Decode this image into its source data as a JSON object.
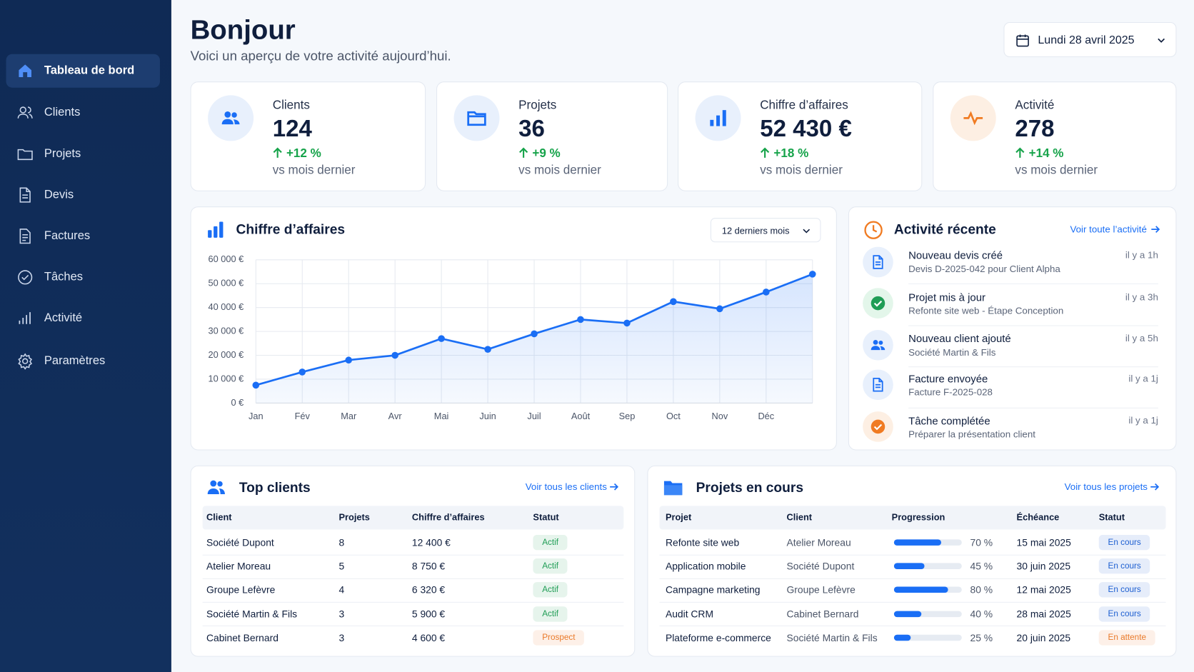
{
  "sidebar": {
    "nav": [
      "Tableau de bord",
      "Clients",
      "Projets",
      "Devis",
      "Factures",
      "Tâches",
      "Activité",
      "Paramètres"
    ]
  },
  "header": {
    "title": "Bonjour",
    "subtitle": "Voici un aperçu de votre activité aujourd’hui.",
    "date": "Lundi 28 avril 2025"
  },
  "stats": [
    {
      "label": "Clients",
      "value": "124",
      "change": "+12 %",
      "note": "vs mois dernier"
    },
    {
      "label": "Projets",
      "value": "36",
      "change": "+9 %",
      "note": "vs mois dernier"
    },
    {
      "label": "Chiffre d’affaires",
      "value": "52 430 €",
      "change": "+18 %",
      "note": "vs mois dernier"
    },
    {
      "label": "Activité",
      "value": "278",
      "change": "+14 %",
      "note": "vs mois dernier"
    }
  ],
  "chart_data": {
    "type": "line",
    "title": "Chiffre d’affaires",
    "period": "12 derniers mois",
    "categories": [
      "Jan",
      "Fév",
      "Mar",
      "Avr",
      "Mai",
      "Juin",
      "Juil",
      "Août",
      "Sep",
      "Oct",
      "Nov",
      "Déc",
      null
    ],
    "values": [
      7500,
      13000,
      18000,
      20000,
      27000,
      22500,
      29000,
      35000,
      33500,
      42500,
      39500,
      46500,
      54000
    ],
    "color": "#1a6ef5",
    "area": true,
    "ylim": [
      0,
      60000
    ],
    "yticks": [
      {
        "value": 0,
        "label": "0 €"
      },
      {
        "value": 10000,
        "label": "10 000 €"
      },
      {
        "value": 20000,
        "label": "20 000 €"
      },
      {
        "value": 30000,
        "label": "30 000 €"
      },
      {
        "value": 40000,
        "label": "40 000 €"
      },
      {
        "value": 50000,
        "label": "50 000 €"
      },
      {
        "value": 60000,
        "label": "60 000 €"
      }
    ],
    "grid": true
  },
  "activity": {
    "title": "Activité récente",
    "link": "Voir toute l’activité",
    "items": [
      {
        "title": "Nouveau devis créé",
        "detail": "Devis D-2025-042 pour Client Alpha",
        "time": "il y a 1h"
      },
      {
        "title": "Projet mis à jour",
        "detail": "Refonte site web - Étape Conception",
        "time": "il y a 3h"
      },
      {
        "title": "Nouveau client ajouté",
        "detail": "Société Martin & Fils",
        "time": "il y a 5h"
      },
      {
        "title": "Facture envoyée",
        "detail": "Facture F-2025-028",
        "time": "il y a 1j"
      },
      {
        "title": "Tâche complétée",
        "detail": "Préparer la présentation client",
        "time": "il y a 1j"
      }
    ]
  },
  "top_clients": {
    "title": "Top clients",
    "link": "Voir tous les clients",
    "columns": [
      "Client",
      "Projets",
      "Chiffre d’affaires",
      "Statut"
    ],
    "rows": [
      {
        "client": "Société Dupont",
        "projects": "8",
        "revenue": "12 400 €",
        "status": "Actif",
        "status_color": "#1f9d55"
      },
      {
        "client": "Atelier Moreau",
        "projects": "5",
        "revenue": "8 750 €",
        "status": "Actif",
        "status_color": "#1f9d55"
      },
      {
        "client": "Groupe Lefèvre",
        "projects": "4",
        "revenue": "6 320 €",
        "status": "Actif",
        "status_color": "#1f9d55"
      },
      {
        "client": "Société Martin & Fils",
        "projects": "3",
        "revenue": "5 900 €",
        "status": "Actif",
        "status_color": "#1f9d55"
      },
      {
        "client": "Cabinet Bernard",
        "projects": "3",
        "revenue": "4 600 €",
        "status": "Prospect",
        "status_color": "#ea7a2a"
      }
    ]
  },
  "projects": {
    "title": "Projets en cours",
    "link": "Voir tous les projets",
    "columns": [
      "Projet",
      "Client",
      "Progression",
      "Échéance",
      "Statut"
    ],
    "bar_color": "#1a6ef5",
    "rows": [
      {
        "name": "Refonte site web",
        "client": "Atelier Moreau",
        "progress": {
          "value": 70,
          "label": "70 %"
        },
        "due": "15 mai 2025",
        "status": "En cours",
        "status_color": "#1d5fd1"
      },
      {
        "name": "Application mobile",
        "client": "Société Dupont",
        "progress": {
          "value": 45,
          "label": "45 %"
        },
        "due": "30 juin 2025",
        "status": "En cours",
        "status_color": "#1d5fd1"
      },
      {
        "name": "Campagne marketing",
        "client": "Groupe Lefèvre",
        "progress": {
          "value": 80,
          "label": "80 %"
        },
        "due": "12 mai 2025",
        "status": "En cours",
        "status_color": "#1d5fd1"
      },
      {
        "name": "Audit CRM",
        "client": "Cabinet Bernard",
        "progress": {
          "value": 40,
          "label": "40 %"
        },
        "due": "28 mai 2025",
        "status": "En cours",
        "status_color": "#1d5fd1"
      },
      {
        "name": "Plateforme e-commerce",
        "client": "Société Martin & Fils",
        "progress": {
          "value": 25,
          "label": "25 %"
        },
        "due": "20 juin 2025",
        "status": "En attente",
        "status_color": "#ea7a2a"
      }
    ]
  }
}
